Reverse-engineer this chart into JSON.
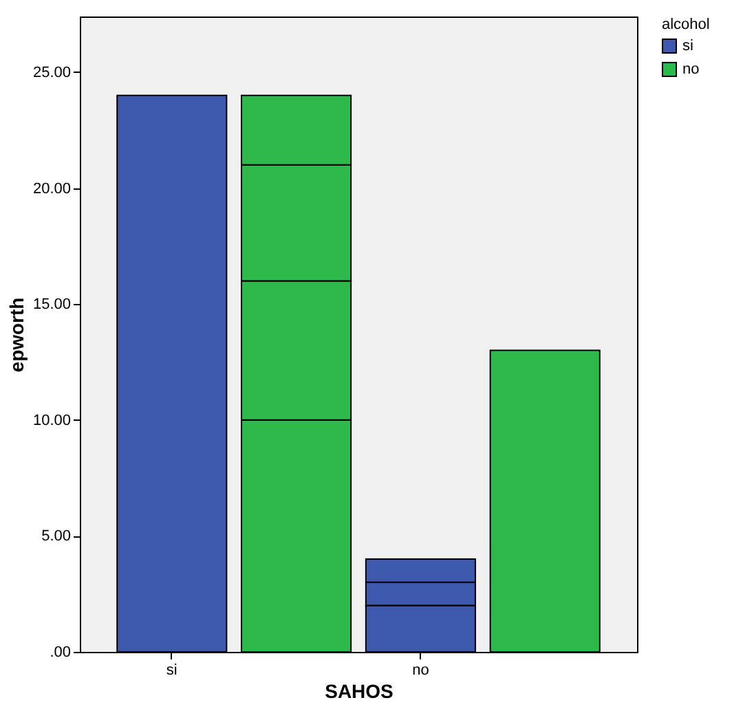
{
  "chart_data": {
    "type": "bar",
    "xlabel": "SAHOS",
    "ylabel": "epworth",
    "legend_title": "alcohol",
    "legend": "top right",
    "categories": [
      "si",
      null,
      "no",
      null
    ],
    "ylim": [
      0,
      27.4
    ],
    "yticks": [
      {
        "value": 0,
        "label": ".00"
      },
      {
        "value": 5,
        "label": "5.00"
      },
      {
        "value": 10,
        "label": "10.00"
      },
      {
        "value": 15,
        "label": "15.00"
      },
      {
        "value": 20,
        "label": "20.00"
      },
      {
        "value": 25,
        "label": "25.00"
      }
    ],
    "stacked": true,
    "series": [
      {
        "name": "si",
        "color": "#3e58ad",
        "values": [
          24,
          null,
          2,
          null
        ]
      },
      {
        "color": "#3e58ad",
        "values": [
          null,
          null,
          1,
          null
        ]
      },
      {
        "color": "#3e58ad",
        "values": [
          null,
          null,
          1,
          null
        ]
      },
      {
        "name": "no",
        "color": "#2db94b",
        "values": [
          null,
          10,
          null,
          13
        ]
      },
      {
        "color": "#2db94b",
        "values": [
          null,
          6,
          null,
          null
        ]
      },
      {
        "color": "#2db94b",
        "values": [
          null,
          5,
          null,
          null
        ]
      },
      {
        "color": "#2db94b",
        "values": [
          null,
          3,
          null,
          null
        ]
      }
    ]
  }
}
